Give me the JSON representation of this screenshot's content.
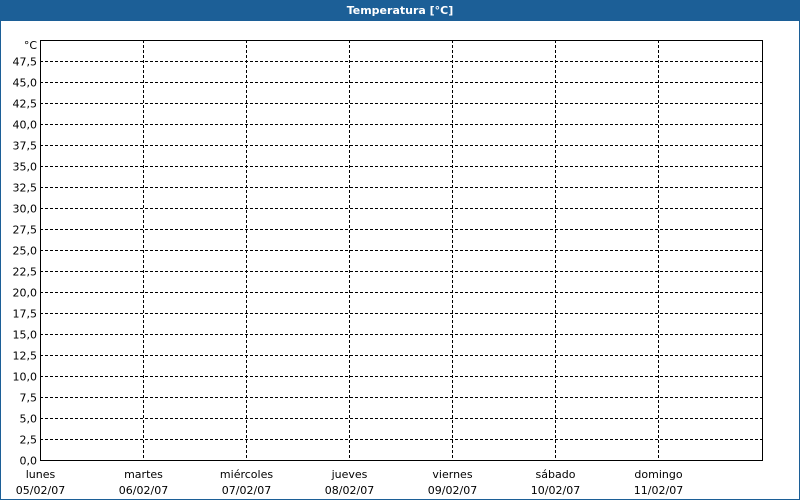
{
  "window": {
    "title": "Temperatura [°C]",
    "title_bar_color": "#1c5f97"
  },
  "chart_data": {
    "type": "line",
    "title": "Temperatura [°C]",
    "ylabel": "°C",
    "ylim": [
      0,
      50
    ],
    "yticks": [
      "0,0",
      "2,5",
      "5,0",
      "7,5",
      "10,0",
      "12,5",
      "15,0",
      "17,5",
      "20,0",
      "22,5",
      "25,0",
      "27,5",
      "30,0",
      "32,5",
      "35,0",
      "37,5",
      "40,0",
      "42,5",
      "45,0",
      "47,5"
    ],
    "ytick_step": 2.5,
    "categories": [
      {
        "day": "lunes",
        "date": "05/02/07"
      },
      {
        "day": "martes",
        "date": "06/02/07"
      },
      {
        "day": "miércoles",
        "date": "07/02/07"
      },
      {
        "day": "jueves",
        "date": "08/02/07"
      },
      {
        "day": "viernes",
        "date": "09/02/07"
      },
      {
        "day": "sábado",
        "date": "10/02/07"
      },
      {
        "day": "domingo",
        "date": "11/02/07"
      }
    ],
    "series": [],
    "grid": true,
    "grid_style": "dashed"
  }
}
